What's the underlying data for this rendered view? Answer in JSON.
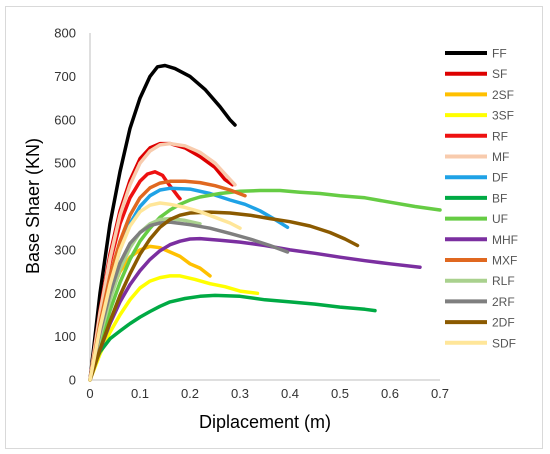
{
  "chart_data": {
    "type": "line",
    "title": "",
    "xlabel": "Diplacement (m)",
    "ylabel": "Base Shaer (KN)",
    "xlim": [
      0,
      0.7
    ],
    "ylim": [
      0,
      800
    ],
    "xticks": [
      0,
      0.1,
      0.2,
      0.3,
      0.4,
      0.5,
      0.6,
      0.7
    ],
    "yticks": [
      0,
      100,
      200,
      300,
      400,
      500,
      600,
      700,
      800
    ],
    "xtick_labels": [
      "0",
      "0.1",
      "0.2",
      "0.3",
      "0.4",
      "0.5",
      "0.6",
      "0.7"
    ],
    "ytick_labels": [
      "0",
      "100",
      "200",
      "300",
      "400",
      "500",
      "600",
      "700",
      "800"
    ],
    "grid": false,
    "legend_position": "right",
    "series": [
      {
        "name": "FF",
        "color": "#000000",
        "points": [
          [
            0,
            0
          ],
          [
            0.02,
            200
          ],
          [
            0.04,
            360
          ],
          [
            0.06,
            480
          ],
          [
            0.08,
            580
          ],
          [
            0.1,
            650
          ],
          [
            0.12,
            700
          ],
          [
            0.135,
            722
          ],
          [
            0.15,
            725
          ],
          [
            0.17,
            718
          ],
          [
            0.2,
            700
          ],
          [
            0.23,
            670
          ],
          [
            0.26,
            630
          ],
          [
            0.28,
            600
          ],
          [
            0.29,
            588
          ]
        ]
      },
      {
        "name": "SF",
        "color": "#dd0000",
        "points": [
          [
            0,
            0
          ],
          [
            0.02,
            160
          ],
          [
            0.04,
            290
          ],
          [
            0.06,
            390
          ],
          [
            0.08,
            460
          ],
          [
            0.1,
            510
          ],
          [
            0.12,
            535
          ],
          [
            0.14,
            545
          ],
          [
            0.16,
            545
          ],
          [
            0.19,
            535
          ],
          [
            0.22,
            515
          ],
          [
            0.25,
            490
          ],
          [
            0.27,
            462
          ],
          [
            0.285,
            450
          ]
        ]
      },
      {
        "name": "2SF",
        "color": "#ffc000",
        "points": [
          [
            0,
            0
          ],
          [
            0.02,
            110
          ],
          [
            0.04,
            195
          ],
          [
            0.06,
            250
          ],
          [
            0.08,
            283
          ],
          [
            0.1,
            300
          ],
          [
            0.12,
            308
          ],
          [
            0.14,
            305
          ],
          [
            0.16,
            295
          ],
          [
            0.18,
            285
          ],
          [
            0.2,
            268
          ],
          [
            0.22,
            258
          ],
          [
            0.24,
            240
          ]
        ]
      },
      {
        "name": "3SF",
        "color": "#ffff00",
        "points": [
          [
            0,
            0
          ],
          [
            0.02,
            60
          ],
          [
            0.04,
            110
          ],
          [
            0.06,
            150
          ],
          [
            0.08,
            185
          ],
          [
            0.1,
            212
          ],
          [
            0.12,
            228
          ],
          [
            0.14,
            236
          ],
          [
            0.16,
            240
          ],
          [
            0.18,
            240
          ],
          [
            0.21,
            232
          ],
          [
            0.24,
            222
          ],
          [
            0.27,
            215
          ],
          [
            0.3,
            205
          ],
          [
            0.335,
            200
          ]
        ]
      },
      {
        "name": "RF",
        "color": "#ee1111",
        "points": [
          [
            0,
            0
          ],
          [
            0.02,
            150
          ],
          [
            0.04,
            270
          ],
          [
            0.06,
            360
          ],
          [
            0.08,
            420
          ],
          [
            0.1,
            458
          ],
          [
            0.115,
            475
          ],
          [
            0.13,
            480
          ],
          [
            0.145,
            472
          ],
          [
            0.155,
            455
          ],
          [
            0.165,
            440
          ],
          [
            0.175,
            425
          ],
          [
            0.18,
            418
          ]
        ]
      },
      {
        "name": "MF",
        "color": "#f8cbad",
        "points": [
          [
            0,
            0
          ],
          [
            0.02,
            155
          ],
          [
            0.04,
            280
          ],
          [
            0.06,
            380
          ],
          [
            0.08,
            450
          ],
          [
            0.1,
            500
          ],
          [
            0.12,
            528
          ],
          [
            0.14,
            542
          ],
          [
            0.16,
            545
          ],
          [
            0.19,
            540
          ],
          [
            0.22,
            525
          ],
          [
            0.25,
            500
          ],
          [
            0.27,
            475
          ],
          [
            0.29,
            450
          ]
        ]
      },
      {
        "name": "DF",
        "color": "#1fa2e6",
        "points": [
          [
            0,
            0
          ],
          [
            0.02,
            120
          ],
          [
            0.04,
            220
          ],
          [
            0.06,
            300
          ],
          [
            0.08,
            360
          ],
          [
            0.1,
            400
          ],
          [
            0.12,
            425
          ],
          [
            0.14,
            438
          ],
          [
            0.16,
            442
          ],
          [
            0.2,
            440
          ],
          [
            0.24,
            430
          ],
          [
            0.28,
            415
          ],
          [
            0.31,
            405
          ],
          [
            0.34,
            390
          ],
          [
            0.37,
            370
          ],
          [
            0.395,
            352
          ]
        ]
      },
      {
        "name": "BF",
        "color": "#00aa44",
        "points": [
          [
            0,
            0
          ],
          [
            0.01,
            40
          ],
          [
            0.02,
            65
          ],
          [
            0.04,
            95
          ],
          [
            0.06,
            113
          ],
          [
            0.08,
            130
          ],
          [
            0.1,
            145
          ],
          [
            0.12,
            158
          ],
          [
            0.14,
            170
          ],
          [
            0.16,
            180
          ],
          [
            0.19,
            188
          ],
          [
            0.22,
            193
          ],
          [
            0.25,
            195
          ],
          [
            0.3,
            193
          ],
          [
            0.35,
            185
          ],
          [
            0.4,
            180
          ],
          [
            0.45,
            175
          ],
          [
            0.5,
            168
          ],
          [
            0.55,
            163
          ],
          [
            0.57,
            160
          ]
        ]
      },
      {
        "name": "UF",
        "color": "#66cc44",
        "points": [
          [
            0,
            0
          ],
          [
            0.02,
            85
          ],
          [
            0.04,
            160
          ],
          [
            0.06,
            225
          ],
          [
            0.08,
            278
          ],
          [
            0.1,
            320
          ],
          [
            0.12,
            350
          ],
          [
            0.14,
            375
          ],
          [
            0.16,
            392
          ],
          [
            0.18,
            405
          ],
          [
            0.2,
            415
          ],
          [
            0.22,
            422
          ],
          [
            0.26,
            430
          ],
          [
            0.3,
            435
          ],
          [
            0.34,
            437
          ],
          [
            0.38,
            437
          ],
          [
            0.42,
            433
          ],
          [
            0.46,
            430
          ],
          [
            0.5,
            425
          ],
          [
            0.55,
            420
          ],
          [
            0.6,
            410
          ],
          [
            0.65,
            400
          ],
          [
            0.7,
            392
          ]
        ]
      },
      {
        "name": "MHF",
        "color": "#7b2fa0",
        "points": [
          [
            0,
            0
          ],
          [
            0.02,
            70
          ],
          [
            0.04,
            130
          ],
          [
            0.06,
            180
          ],
          [
            0.08,
            220
          ],
          [
            0.1,
            252
          ],
          [
            0.12,
            278
          ],
          [
            0.14,
            298
          ],
          [
            0.16,
            312
          ],
          [
            0.18,
            320
          ],
          [
            0.2,
            325
          ],
          [
            0.22,
            326
          ],
          [
            0.26,
            322
          ],
          [
            0.3,
            318
          ],
          [
            0.35,
            310
          ],
          [
            0.4,
            300
          ],
          [
            0.45,
            292
          ],
          [
            0.5,
            283
          ],
          [
            0.55,
            275
          ],
          [
            0.6,
            268
          ],
          [
            0.66,
            260
          ]
        ]
      },
      {
        "name": "MXF",
        "color": "#e06820",
        "points": [
          [
            0,
            0
          ],
          [
            0.02,
            130
          ],
          [
            0.04,
            240
          ],
          [
            0.06,
            320
          ],
          [
            0.08,
            380
          ],
          [
            0.1,
            420
          ],
          [
            0.12,
            443
          ],
          [
            0.14,
            454
          ],
          [
            0.16,
            458
          ],
          [
            0.19,
            458
          ],
          [
            0.22,
            455
          ],
          [
            0.25,
            448
          ],
          [
            0.28,
            438
          ],
          [
            0.31,
            425
          ]
        ]
      },
      {
        "name": "RLF",
        "color": "#a9d18e",
        "points": [
          [
            0,
            0
          ],
          [
            0.02,
            100
          ],
          [
            0.04,
            185
          ],
          [
            0.06,
            255
          ],
          [
            0.08,
            305
          ],
          [
            0.1,
            340
          ],
          [
            0.12,
            360
          ],
          [
            0.14,
            370
          ],
          [
            0.16,
            372
          ],
          [
            0.19,
            368
          ],
          [
            0.22,
            360
          ]
        ]
      },
      {
        "name": "2RF",
        "color": "#7f7f7f",
        "points": [
          [
            0,
            0
          ],
          [
            0.02,
            110
          ],
          [
            0.04,
            200
          ],
          [
            0.06,
            270
          ],
          [
            0.08,
            315
          ],
          [
            0.1,
            340
          ],
          [
            0.12,
            356
          ],
          [
            0.14,
            362
          ],
          [
            0.16,
            364
          ],
          [
            0.2,
            358
          ],
          [
            0.24,
            350
          ],
          [
            0.28,
            338
          ],
          [
            0.32,
            325
          ],
          [
            0.36,
            310
          ],
          [
            0.395,
            295
          ]
        ]
      },
      {
        "name": "2DF",
        "color": "#8b5a00",
        "points": [
          [
            0,
            0
          ],
          [
            0.02,
            70
          ],
          [
            0.04,
            135
          ],
          [
            0.06,
            195
          ],
          [
            0.08,
            245
          ],
          [
            0.1,
            290
          ],
          [
            0.12,
            325
          ],
          [
            0.14,
            352
          ],
          [
            0.16,
            370
          ],
          [
            0.18,
            380
          ],
          [
            0.2,
            385
          ],
          [
            0.24,
            387
          ],
          [
            0.28,
            385
          ],
          [
            0.32,
            380
          ],
          [
            0.36,
            372
          ],
          [
            0.4,
            365
          ],
          [
            0.44,
            355
          ],
          [
            0.48,
            340
          ],
          [
            0.51,
            325
          ],
          [
            0.535,
            310
          ]
        ]
      },
      {
        "name": "SDF",
        "color": "#ffe699",
        "points": [
          [
            0,
            0
          ],
          [
            0.02,
            120
          ],
          [
            0.04,
            220
          ],
          [
            0.06,
            300
          ],
          [
            0.08,
            355
          ],
          [
            0.1,
            388
          ],
          [
            0.12,
            403
          ],
          [
            0.14,
            408
          ],
          [
            0.16,
            405
          ],
          [
            0.19,
            398
          ],
          [
            0.22,
            388
          ],
          [
            0.25,
            375
          ],
          [
            0.28,
            362
          ],
          [
            0.3,
            350
          ]
        ]
      }
    ]
  }
}
